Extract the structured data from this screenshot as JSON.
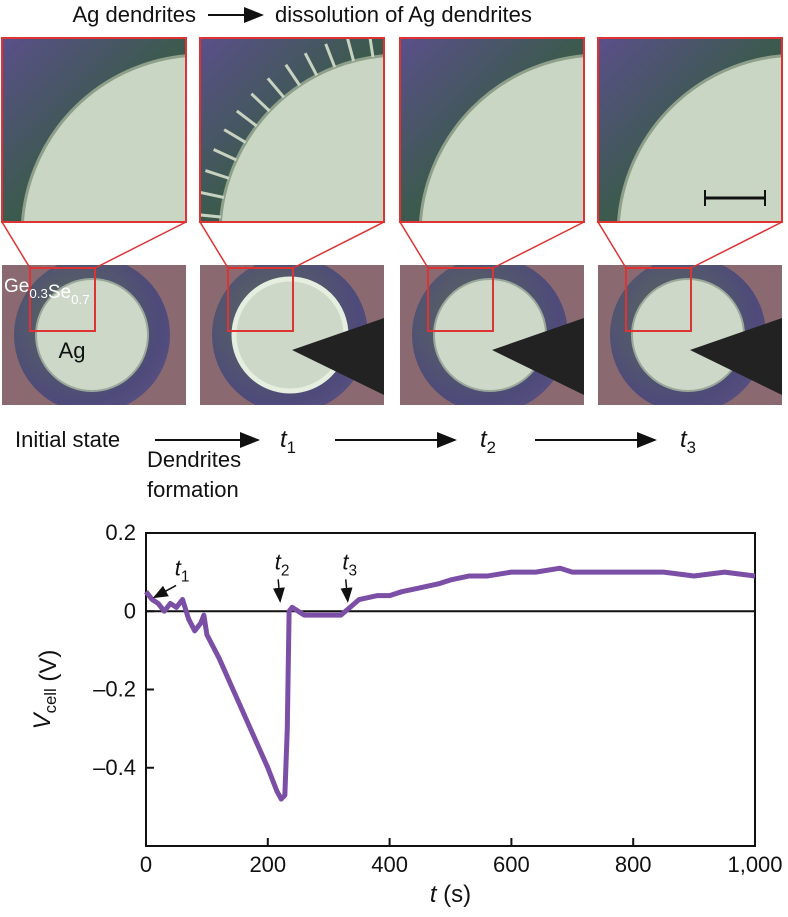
{
  "figure": {
    "header": {
      "left": "Ag dendrites",
      "right": "dissolution of Ag dendrites"
    },
    "material": {
      "parts": [
        "Ge",
        "0.3",
        "Se",
        "0.7"
      ]
    },
    "electrode": "Ag",
    "steps": {
      "initial": "Initial state",
      "process": [
        "Dendrites",
        "formation"
      ],
      "times": [
        {
          "t": "t",
          "sub": "1"
        },
        {
          "t": "t",
          "sub": "2"
        },
        {
          "t": "t",
          "sub": "3"
        }
      ]
    }
  },
  "chart_data": {
    "type": "line",
    "ylabel": {
      "main": "V",
      "sub": "cell",
      "unit": " (V)"
    },
    "xlabel": {
      "main": "t",
      "unit": " (s)"
    },
    "x": [
      0,
      10,
      20,
      30,
      40,
      50,
      60,
      70,
      80,
      90,
      95,
      100,
      120,
      140,
      160,
      180,
      200,
      215,
      222,
      228,
      232,
      235,
      240,
      260,
      280,
      300,
      320,
      335,
      350,
      380,
      400,
      420,
      450,
      480,
      500,
      530,
      560,
      600,
      640,
      680,
      700,
      750,
      800,
      850,
      900,
      950,
      1000
    ],
    "series": [
      {
        "color": "#7b4fa6",
        "values": [
          0.05,
          0.03,
          0.02,
          0.0,
          0.02,
          0.01,
          0.03,
          -0.02,
          -0.05,
          -0.03,
          -0.01,
          -0.06,
          -0.12,
          -0.19,
          -0.26,
          -0.33,
          -0.4,
          -0.46,
          -0.48,
          -0.47,
          -0.3,
          0.0,
          0.01,
          -0.01,
          -0.01,
          -0.01,
          -0.01,
          0.01,
          0.03,
          0.04,
          0.04,
          0.05,
          0.06,
          0.07,
          0.08,
          0.09,
          0.09,
          0.1,
          0.1,
          0.11,
          0.1,
          0.1,
          0.1,
          0.1,
          0.09,
          0.1,
          0.09
        ]
      }
    ],
    "xlim": [
      0,
      1000
    ],
    "ylim": [
      -0.6,
      0.2
    ],
    "xticks": [
      0,
      200,
      400,
      600,
      800,
      {
        "value": 1000,
        "label": "1,000"
      }
    ],
    "yticks": [
      {
        "value": -0.4,
        "label": "–0.4"
      },
      {
        "value": -0.2,
        "label": "–0.2"
      },
      0,
      0.2
    ],
    "annotations": [
      {
        "t": "t",
        "sub": "1",
        "x": 10,
        "y": 0.02
      },
      {
        "t": "t",
        "sub": "2",
        "x": 217,
        "y": 0.01
      },
      {
        "t": "t",
        "sub": "3",
        "x": 328,
        "y": 0.01
      }
    ]
  }
}
